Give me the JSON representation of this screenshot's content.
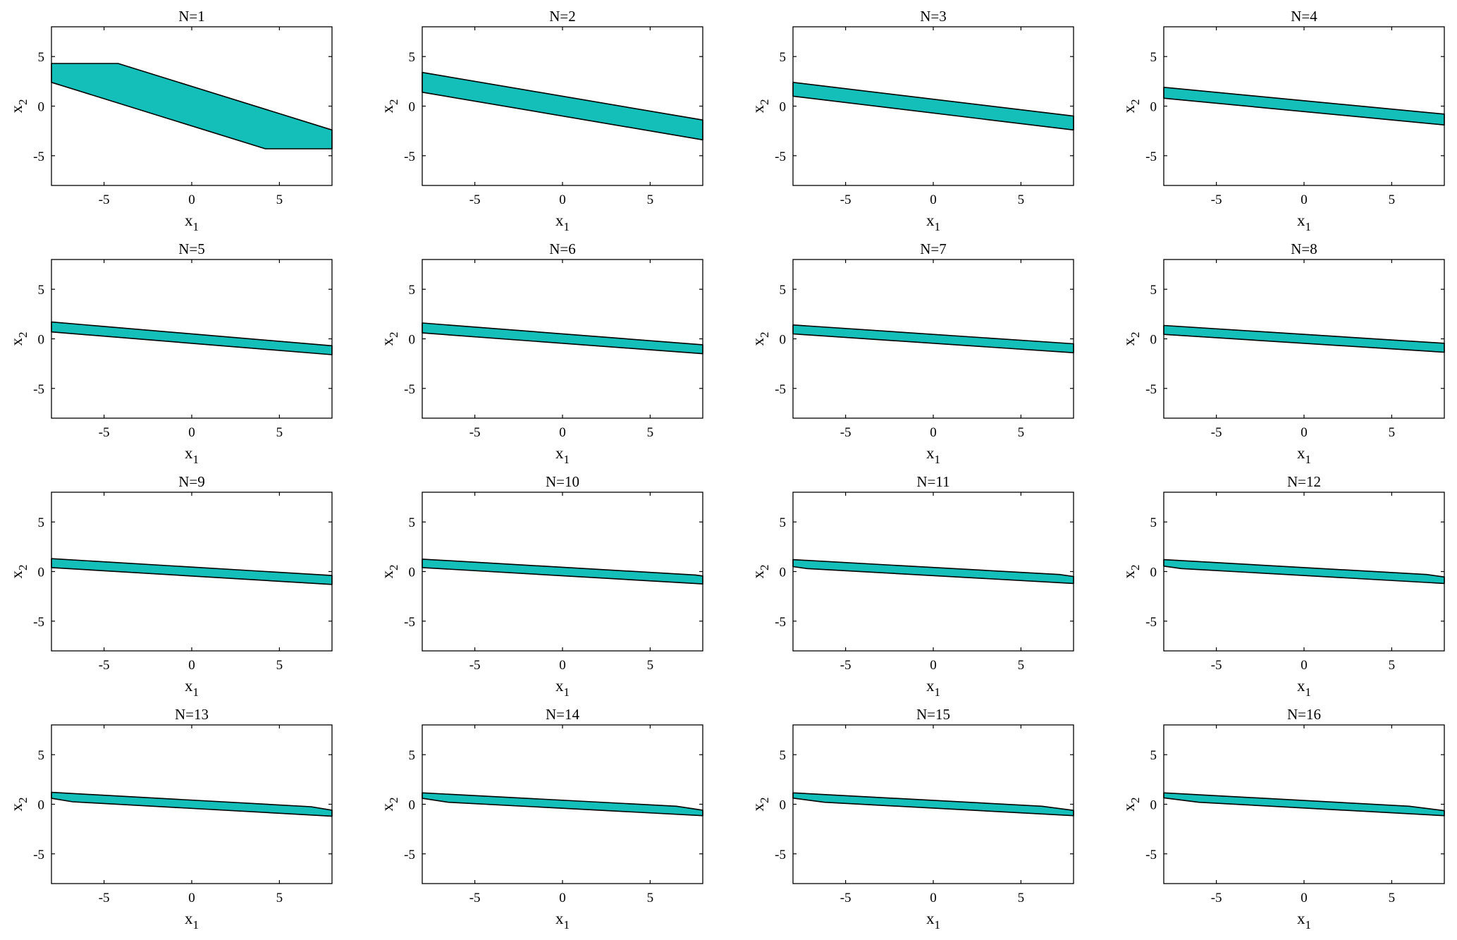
{
  "figure": {
    "colors": {
      "fill": "#14bfb9",
      "stroke": "#000000",
      "background": "#ffffff"
    }
  },
  "chart_data": [
    {
      "type": "area",
      "title": "N=1",
      "xlabel": "x1",
      "ylabel": "x2",
      "xlim": [
        -8,
        8
      ],
      "ylim": [
        -8,
        8
      ],
      "xticks": [
        -5,
        0,
        5
      ],
      "yticks": [
        -5,
        0,
        5
      ],
      "grid": false,
      "series": [
        {
          "name": "",
          "polygon": [
            [
              -8,
              4.3
            ],
            [
              -4.2,
              4.3
            ],
            [
              8,
              -2.4
            ],
            [
              8,
              -4.3
            ],
            [
              4.2,
              -4.3
            ],
            [
              -8,
              2.4
            ]
          ]
        }
      ]
    },
    {
      "type": "area",
      "title": "N=2",
      "xlabel": "x1",
      "ylabel": "x2",
      "xlim": [
        -8,
        8
      ],
      "ylim": [
        -8,
        8
      ],
      "xticks": [
        -5,
        0,
        5
      ],
      "yticks": [
        -5,
        0,
        5
      ],
      "grid": false,
      "series": [
        {
          "name": "",
          "polygon": [
            [
              -8,
              3.4
            ],
            [
              8,
              -1.4
            ],
            [
              8,
              -3.4
            ],
            [
              -8,
              1.4
            ]
          ]
        }
      ]
    },
    {
      "type": "area",
      "title": "N=3",
      "xlabel": "x1",
      "ylabel": "x2",
      "xlim": [
        -8,
        8
      ],
      "ylim": [
        -8,
        8
      ],
      "xticks": [
        -5,
        0,
        5
      ],
      "yticks": [
        -5,
        0,
        5
      ],
      "grid": false,
      "series": [
        {
          "name": "",
          "polygon": [
            [
              -8,
              2.4
            ],
            [
              8,
              -1.0
            ],
            [
              8,
              -2.4
            ],
            [
              -8,
              1.0
            ]
          ]
        }
      ]
    },
    {
      "type": "area",
      "title": "N=4",
      "xlabel": "x1",
      "ylabel": "x2",
      "xlim": [
        -8,
        8
      ],
      "ylim": [
        -8,
        8
      ],
      "xticks": [
        -5,
        0,
        5
      ],
      "yticks": [
        -5,
        0,
        5
      ],
      "grid": false,
      "series": [
        {
          "name": "",
          "polygon": [
            [
              -8,
              1.9
            ],
            [
              8,
              -0.8
            ],
            [
              8,
              -1.9
            ],
            [
              -8,
              0.8
            ]
          ]
        }
      ]
    },
    {
      "type": "area",
      "title": "N=5",
      "xlabel": "x1",
      "ylabel": "x2",
      "xlim": [
        -8,
        8
      ],
      "ylim": [
        -8,
        8
      ],
      "xticks": [
        -5,
        0,
        5
      ],
      "yticks": [
        -5,
        0,
        5
      ],
      "grid": false,
      "series": [
        {
          "name": "",
          "polygon": [
            [
              -8,
              1.7
            ],
            [
              8,
              -0.7
            ],
            [
              8,
              -1.6
            ],
            [
              -8,
              0.7
            ]
          ]
        }
      ]
    },
    {
      "type": "area",
      "title": "N=6",
      "xlabel": "x1",
      "ylabel": "x2",
      "xlim": [
        -8,
        8
      ],
      "ylim": [
        -8,
        8
      ],
      "xticks": [
        -5,
        0,
        5
      ],
      "yticks": [
        -5,
        0,
        5
      ],
      "grid": false,
      "series": [
        {
          "name": "",
          "polygon": [
            [
              -8,
              1.6
            ],
            [
              8,
              -0.6
            ],
            [
              8,
              -1.5
            ],
            [
              -8,
              0.6
            ]
          ]
        }
      ]
    },
    {
      "type": "area",
      "title": "N=7",
      "xlabel": "x1",
      "ylabel": "x2",
      "xlim": [
        -8,
        8
      ],
      "ylim": [
        -8,
        8
      ],
      "xticks": [
        -5,
        0,
        5
      ],
      "yticks": [
        -5,
        0,
        5
      ],
      "grid": false,
      "series": [
        {
          "name": "",
          "polygon": [
            [
              -8,
              1.4
            ],
            [
              8,
              -0.5
            ],
            [
              8,
              -1.4
            ],
            [
              -8,
              0.5
            ]
          ]
        }
      ]
    },
    {
      "type": "area",
      "title": "N=8",
      "xlabel": "x1",
      "ylabel": "x2",
      "xlim": [
        -8,
        8
      ],
      "ylim": [
        -8,
        8
      ],
      "xticks": [
        -5,
        0,
        5
      ],
      "yticks": [
        -5,
        0,
        5
      ],
      "grid": false,
      "series": [
        {
          "name": "",
          "polygon": [
            [
              -8,
              1.35
            ],
            [
              8,
              -0.45
            ],
            [
              8,
              -1.35
            ],
            [
              -8,
              0.45
            ]
          ]
        }
      ]
    },
    {
      "type": "area",
      "title": "N=9",
      "xlabel": "x1",
      "ylabel": "x2",
      "xlim": [
        -8,
        8
      ],
      "ylim": [
        -8,
        8
      ],
      "xticks": [
        -5,
        0,
        5
      ],
      "yticks": [
        -5,
        0,
        5
      ],
      "grid": false,
      "series": [
        {
          "name": "",
          "polygon": [
            [
              -8,
              1.3
            ],
            [
              8,
              -0.4
            ],
            [
              8,
              -1.3
            ],
            [
              -8,
              0.4
            ]
          ]
        }
      ]
    },
    {
      "type": "area",
      "title": "N=10",
      "xlabel": "x1",
      "ylabel": "x2",
      "xlim": [
        -8,
        8
      ],
      "ylim": [
        -8,
        8
      ],
      "xticks": [
        -5,
        0,
        5
      ],
      "yticks": [
        -5,
        0,
        5
      ],
      "grid": false,
      "series": [
        {
          "name": "",
          "polygon": [
            [
              -8,
              1.25
            ],
            [
              7.6,
              -0.35
            ],
            [
              8,
              -0.45
            ],
            [
              8,
              -1.25
            ],
            [
              -8,
              0.4
            ]
          ]
        }
      ]
    },
    {
      "type": "area",
      "title": "N=11",
      "xlabel": "x1",
      "ylabel": "x2",
      "xlim": [
        -8,
        8
      ],
      "ylim": [
        -8,
        8
      ],
      "xticks": [
        -5,
        0,
        5
      ],
      "yticks": [
        -5,
        0,
        5
      ],
      "grid": false,
      "series": [
        {
          "name": "",
          "polygon": [
            [
              -8,
              1.2
            ],
            [
              7.2,
              -0.3
            ],
            [
              8,
              -0.5
            ],
            [
              8,
              -1.2
            ],
            [
              -7.2,
              0.3
            ],
            [
              -8,
              0.5
            ]
          ]
        }
      ]
    },
    {
      "type": "area",
      "title": "N=12",
      "xlabel": "x1",
      "ylabel": "x2",
      "xlim": [
        -8,
        8
      ],
      "ylim": [
        -8,
        8
      ],
      "xticks": [
        -5,
        0,
        5
      ],
      "yticks": [
        -5,
        0,
        5
      ],
      "grid": false,
      "series": [
        {
          "name": "",
          "polygon": [
            [
              -8,
              1.2
            ],
            [
              7.0,
              -0.3
            ],
            [
              8,
              -0.55
            ],
            [
              8,
              -1.2
            ],
            [
              -7.0,
              0.3
            ],
            [
              -8,
              0.55
            ]
          ]
        }
      ]
    },
    {
      "type": "area",
      "title": "N=13",
      "xlabel": "x1",
      "ylabel": "x2",
      "xlim": [
        -8,
        8
      ],
      "ylim": [
        -8,
        8
      ],
      "xticks": [
        -5,
        0,
        5
      ],
      "yticks": [
        -5,
        0,
        5
      ],
      "grid": false,
      "series": [
        {
          "name": "",
          "polygon": [
            [
              -8,
              1.2
            ],
            [
              6.8,
              -0.25
            ],
            [
              8,
              -0.6
            ],
            [
              8,
              -1.2
            ],
            [
              -6.8,
              0.25
            ],
            [
              -8,
              0.6
            ]
          ]
        }
      ]
    },
    {
      "type": "area",
      "title": "N=14",
      "xlabel": "x1",
      "ylabel": "x2",
      "xlim": [
        -8,
        8
      ],
      "ylim": [
        -8,
        8
      ],
      "xticks": [
        -5,
        0,
        5
      ],
      "yticks": [
        -5,
        0,
        5
      ],
      "grid": false,
      "series": [
        {
          "name": "",
          "polygon": [
            [
              -8,
              1.15
            ],
            [
              6.5,
              -0.2
            ],
            [
              8,
              -0.6
            ],
            [
              8,
              -1.15
            ],
            [
              -6.5,
              0.2
            ],
            [
              -8,
              0.6
            ]
          ]
        }
      ]
    },
    {
      "type": "area",
      "title": "N=15",
      "xlabel": "x1",
      "ylabel": "x2",
      "xlim": [
        -8,
        8
      ],
      "ylim": [
        -8,
        8
      ],
      "xticks": [
        -5,
        0,
        5
      ],
      "yticks": [
        -5,
        0,
        5
      ],
      "grid": false,
      "series": [
        {
          "name": "",
          "polygon": [
            [
              -8,
              1.15
            ],
            [
              6.2,
              -0.2
            ],
            [
              8,
              -0.62
            ],
            [
              8,
              -1.15
            ],
            [
              -6.2,
              0.2
            ],
            [
              -8,
              0.62
            ]
          ]
        }
      ]
    },
    {
      "type": "area",
      "title": "N=16",
      "xlabel": "x1",
      "ylabel": "x2",
      "xlim": [
        -8,
        8
      ],
      "ylim": [
        -8,
        8
      ],
      "xticks": [
        -5,
        0,
        5
      ],
      "yticks": [
        -5,
        0,
        5
      ],
      "grid": false,
      "series": [
        {
          "name": "",
          "polygon": [
            [
              -8,
              1.15
            ],
            [
              6.0,
              -0.2
            ],
            [
              8,
              -0.65
            ],
            [
              8,
              -1.15
            ],
            [
              -6.0,
              0.2
            ],
            [
              -8,
              0.65
            ]
          ]
        }
      ]
    }
  ]
}
